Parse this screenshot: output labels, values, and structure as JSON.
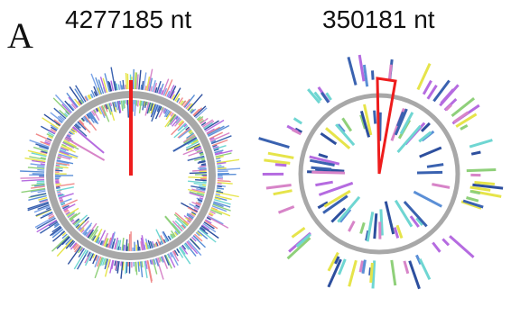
{
  "figure": {
    "panel_letter": "A",
    "genomes": [
      {
        "length_label": "4277185 nt",
        "density": "dense",
        "marker": "line",
        "colors": [
          "#3a62b0",
          "#5b8fd6",
          "#8fd07a",
          "#e6e44a",
          "#d784c8",
          "#6fd6d2",
          "#b56be0",
          "#f08a8a",
          "#7aa3e8",
          "#2d4f9e"
        ]
      },
      {
        "length_label": "350181 nt",
        "density": "sparse",
        "marker": "wedge",
        "colors": [
          "#3a62b0",
          "#5b8fd6",
          "#8fd07a",
          "#e6e44a",
          "#d784c8",
          "#6fd6d2",
          "#b56be0",
          "#2d4f9e"
        ]
      }
    ],
    "ring_color": "#a8a8a8",
    "marker_color": "#ee1c1c"
  }
}
